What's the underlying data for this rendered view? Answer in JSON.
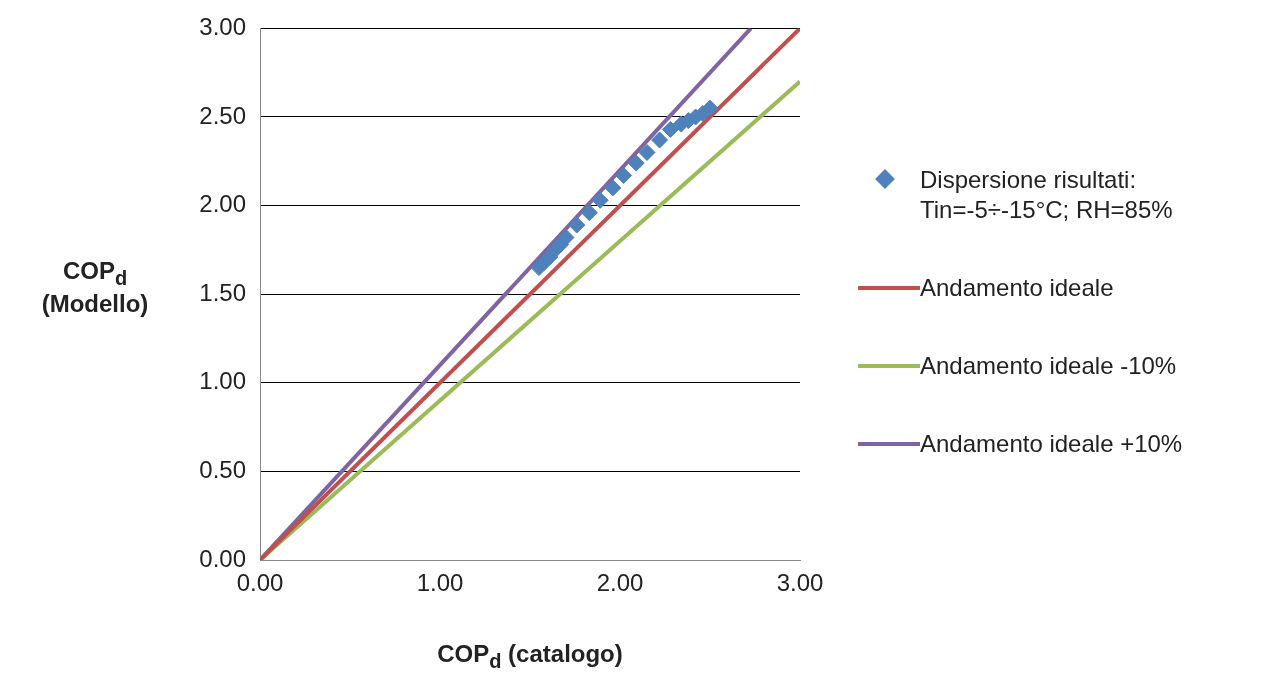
{
  "chart_data": {
    "type": "scatter",
    "xlabel": "COP$_{d}$ (catalogo)",
    "ylabel": "COP$_{d}$\n(Modello)",
    "xlim": [
      0,
      3
    ],
    "xticks": [
      {
        "value": 0,
        "label": "0.00"
      },
      {
        "value": 1,
        "label": "1.00"
      },
      {
        "value": 2,
        "label": "2.00"
      },
      {
        "value": 3,
        "label": "3.00"
      }
    ],
    "ylim": [
      0,
      3
    ],
    "yticks": [
      {
        "value": 0,
        "label": "0.00"
      },
      {
        "value": 0.5,
        "label": "0.50"
      },
      {
        "value": 1,
        "label": "1.00"
      },
      {
        "value": 1.5,
        "label": "1.50"
      },
      {
        "value": 2,
        "label": "2.00"
      },
      {
        "value": 2.5,
        "label": "2.50"
      },
      {
        "value": 3,
        "label": "3.00"
      }
    ],
    "grid": "y",
    "legend": "right",
    "series": [
      {
        "name": "Dispersione risultati: Tin=-5÷-15°C; RH=85%",
        "marker": "diamond",
        "color": "#4f81bd",
        "x": [
          1.55,
          1.58,
          1.61,
          1.64,
          1.67,
          1.7,
          1.76,
          1.83,
          1.89,
          1.96,
          2.02,
          2.09,
          2.15,
          2.22,
          2.28,
          2.34,
          2.38,
          2.42,
          2.46,
          2.5
        ],
        "values": [
          1.65,
          1.68,
          1.71,
          1.75,
          1.78,
          1.82,
          1.89,
          1.96,
          2.03,
          2.1,
          2.17,
          2.24,
          2.3,
          2.37,
          2.43,
          2.46,
          2.48,
          2.5,
          2.52,
          2.55
        ]
      },
      {
        "name": "Andamento ideale",
        "type": "line",
        "marker": "none",
        "color": "#c0504d",
        "x": [
          0,
          3
        ],
        "values": [
          0,
          3
        ]
      },
      {
        "name": "Andamento ideale -10%",
        "type": "line",
        "marker": "none",
        "color": "#9bbb59",
        "x": [
          0,
          3
        ],
        "values": [
          0,
          2.7
        ]
      },
      {
        "name": "Andamento ideale +10%",
        "type": "line",
        "marker": "none",
        "color": "#8064a2",
        "x": [
          0,
          2.727
        ],
        "values": [
          0,
          3
        ]
      }
    ]
  }
}
